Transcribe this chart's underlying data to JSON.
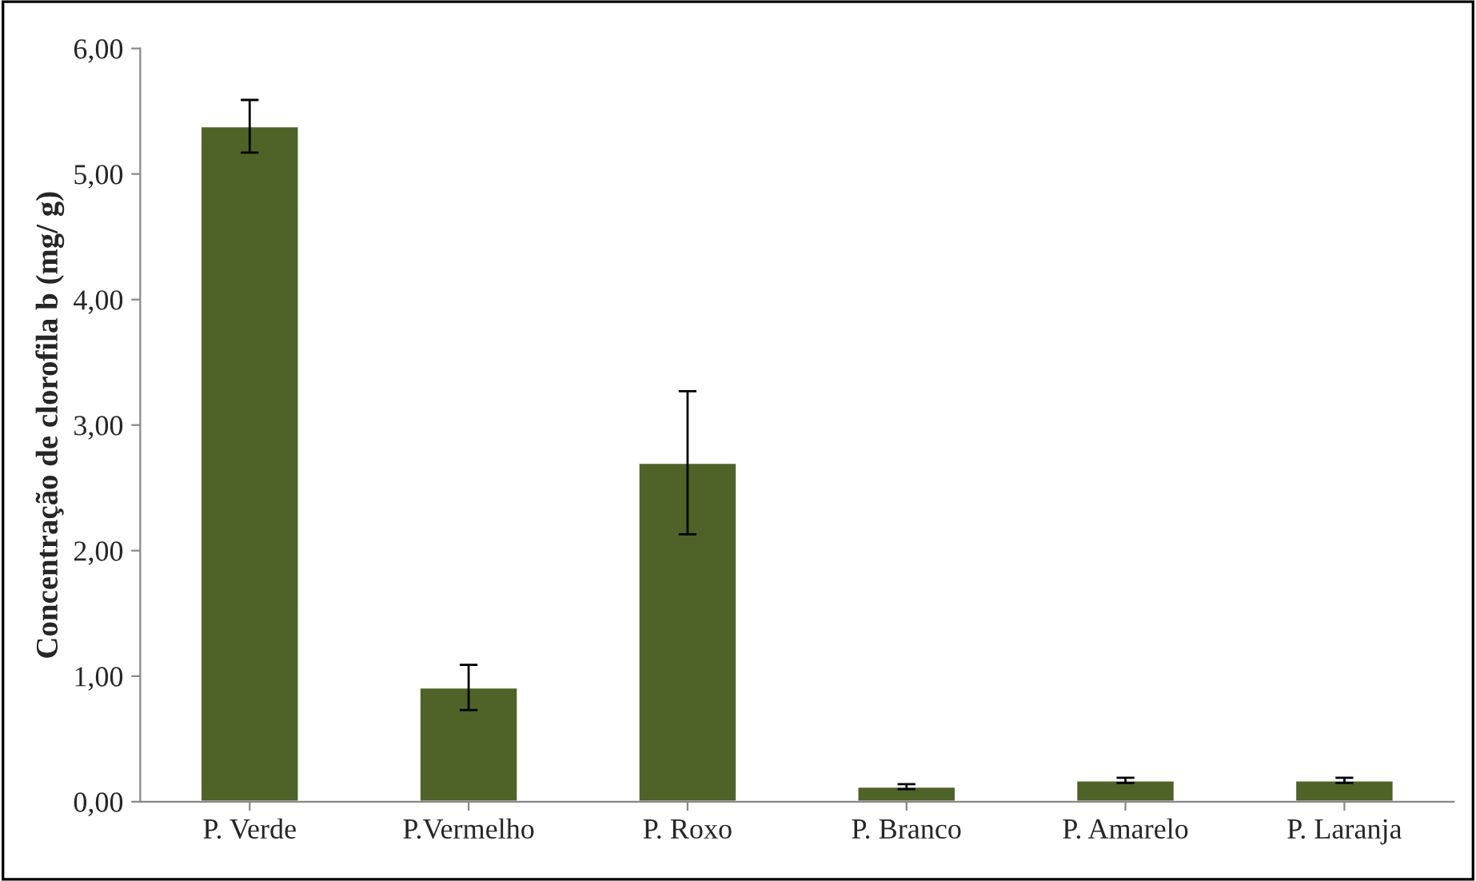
{
  "chart_data": {
    "type": "bar",
    "ylabel": "Concentração de clorofila b (mg/ g)",
    "categories": [
      "P. Verde",
      "P.Vermelho",
      "P. Roxo",
      "P. Branco",
      "P. Amarelo",
      "P. Laranja"
    ],
    "values": [
      5.38,
      0.91,
      2.7,
      0.12,
      0.17,
      0.17
    ],
    "errors": [
      0.21,
      0.18,
      0.57,
      0.02,
      0.02,
      0.02
    ],
    "color": "#4f6228",
    "ylim": [
      0,
      6
    ],
    "yticks": [
      {
        "value": 0,
        "label": "0,00"
      },
      {
        "value": 1,
        "label": "1,00"
      },
      {
        "value": 2,
        "label": "2,00"
      },
      {
        "value": 3,
        "label": "3,00"
      },
      {
        "value": 4,
        "label": "4,00"
      },
      {
        "value": 5,
        "label": "5,00"
      },
      {
        "value": 6,
        "label": "6,00"
      }
    ],
    "grid": false
  }
}
